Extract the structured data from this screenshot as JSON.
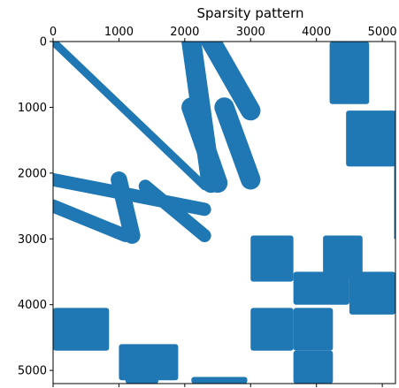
{
  "chart_data": {
    "type": "heatmap",
    "title": "Sparsity pattern",
    "xlabel": "",
    "ylabel": "",
    "xlim": [
      0,
      5200
    ],
    "ylim": [
      5200,
      0
    ],
    "x_ticks": [
      "0",
      "1000",
      "2000",
      "3000",
      "4000",
      "5000"
    ],
    "y_ticks": [
      "0",
      "1000",
      "2000",
      "3000",
      "4000",
      "5000"
    ],
    "grid": false,
    "marker_color": "#1f77b4",
    "diagonal_bands": [
      {
        "x0": 0,
        "y0": 0,
        "x1": 2300,
        "y1": 2200,
        "width": 120
      },
      {
        "x0": 2100,
        "y0": 0,
        "x1": 2400,
        "y1": 2150,
        "width": 300
      },
      {
        "x0": 2400,
        "y0": 0,
        "x1": 3000,
        "y1": 1050,
        "width": 300
      },
      {
        "x0": 2100,
        "y0": 1000,
        "x1": 2500,
        "y1": 2150,
        "width": 300
      },
      {
        "x0": 2600,
        "y0": 1000,
        "x1": 3000,
        "y1": 2100,
        "width": 300
      },
      {
        "x0": 0,
        "y0": 2100,
        "x1": 2300,
        "y1": 2550,
        "width": 200
      },
      {
        "x0": 0,
        "y0": 2500,
        "x1": 1100,
        "y1": 2950,
        "width": 200
      },
      {
        "x0": 1000,
        "y0": 2100,
        "x1": 1200,
        "y1": 2950,
        "width": 250
      },
      {
        "x0": 1400,
        "y0": 2200,
        "x1": 2300,
        "y1": 2950,
        "width": 200
      }
    ],
    "blocks": [
      {
        "x": [
          3000,
          3650
        ],
        "y": [
          2950,
          3650
        ]
      },
      {
        "x": [
          3000,
          3650
        ],
        "y": [
          4050,
          4700
        ]
      },
      {
        "x": [
          3650,
          4500
        ],
        "y": [
          3500,
          4000
        ]
      },
      {
        "x": [
          3650,
          4250
        ],
        "y": [
          4050,
          4700
        ]
      },
      {
        "x": [
          3650,
          4250
        ],
        "y": [
          4700,
          5200
        ]
      },
      {
        "x": [
          4200,
          4800
        ],
        "y": [
          0,
          950
        ]
      },
      {
        "x": [
          4450,
          5200
        ],
        "y": [
          1050,
          1900
        ]
      },
      {
        "x": [
          4100,
          4700
        ],
        "y": [
          2950,
          3600
        ]
      },
      {
        "x": [
          4500,
          5200
        ],
        "y": [
          3500,
          4150
        ]
      },
      {
        "x": [
          0,
          850
        ],
        "y": [
          4050,
          4700
        ]
      },
      {
        "x": [
          1000,
          1900
        ],
        "y": [
          4600,
          5150
        ]
      },
      {
        "x": [
          1100,
          1600
        ],
        "y": [
          4900,
          5200
        ]
      },
      {
        "x": [
          2100,
          2950
        ],
        "y": [
          5100,
          5200
        ]
      }
    ],
    "edge_strips": [
      {
        "x": [
          5180,
          5230
        ],
        "y": [
          1050,
          3000
        ]
      }
    ]
  }
}
